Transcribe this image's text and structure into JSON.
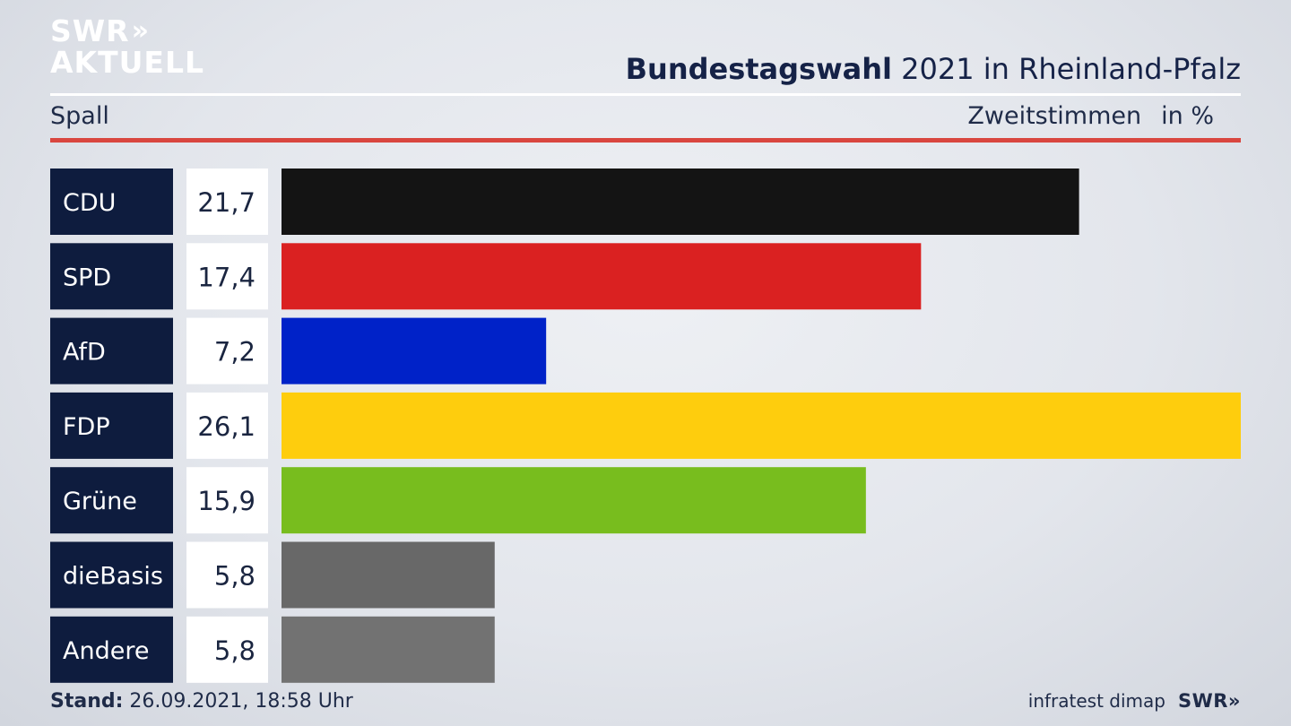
{
  "brand": {
    "line1": "SWR",
    "arrows": "»",
    "line2": "AKTUELL"
  },
  "header": {
    "title_bold": "Bundestagswahl",
    "title_rest": " 2021 in Rheinland-Pfalz",
    "region": "Spall",
    "measure": "Zweitstimmen",
    "unit": "in %"
  },
  "chart_data": {
    "type": "bar",
    "orientation": "horizontal",
    "categories": [
      "CDU",
      "SPD",
      "AfD",
      "FDP",
      "Grüne",
      "dieBasis",
      "Andere"
    ],
    "values": [
      21.7,
      17.4,
      7.2,
      26.1,
      15.9,
      5.8,
      5.8
    ],
    "value_labels": [
      "21,7",
      "17,4",
      "7,2",
      "26,1",
      "15,9",
      "5,8",
      "5,8"
    ],
    "colors": [
      "#141414",
      "#da2121",
      "#0022c8",
      "#fecd0d",
      "#78bd1e",
      "#686868",
      "#727272"
    ],
    "label_box_color": "#0e1c3e",
    "value_box_color": "#ffffff",
    "xlim": [
      0,
      26.1
    ]
  },
  "footer": {
    "stand_label": "Stand:",
    "stand_value": " 26.09.2021, 18:58 Uhr",
    "source": "infratest dimap",
    "swr_small": "SWR»"
  }
}
